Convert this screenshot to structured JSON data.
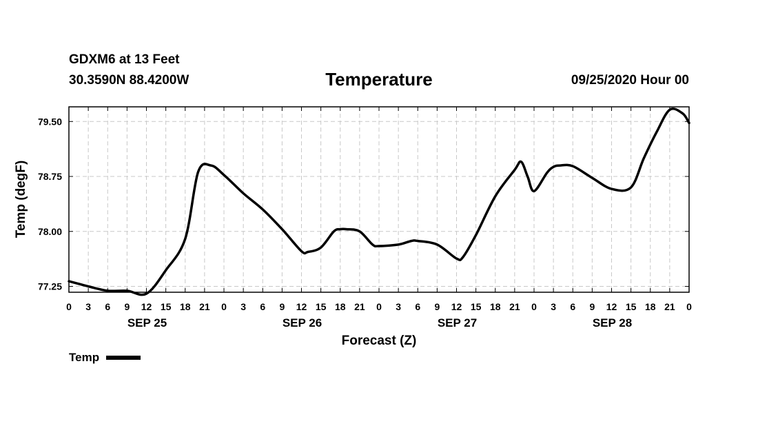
{
  "header": {
    "station": "GDXM6 at 13 Feet",
    "latlon": "30.3590N 88.4200W",
    "title": "Temperature",
    "datetime": "09/25/2020 Hour 00"
  },
  "legend": {
    "label": "Temp"
  },
  "chart_data": {
    "type": "line",
    "title": "Temperature",
    "xlabel": "Forecast (Z)",
    "ylabel": "Temp (degF)",
    "ylim": [
      77.17,
      79.7
    ],
    "y_ticks": [
      77.25,
      78.0,
      78.75,
      79.5
    ],
    "y_tick_labels": [
      "77.25",
      "78.00",
      "78.75",
      "79.50"
    ],
    "xlim": [
      0,
      96
    ],
    "x_unit": "forecast hours",
    "x_tick_labels": [
      "0",
      "3",
      "6",
      "9",
      "12",
      "15",
      "18",
      "21",
      "0",
      "3",
      "6",
      "9",
      "12",
      "15",
      "18",
      "21",
      "0",
      "3",
      "6",
      "9",
      "12",
      "15",
      "18",
      "21",
      "0",
      "3",
      "6",
      "9",
      "12",
      "15",
      "18",
      "21",
      "0"
    ],
    "day_labels": [
      {
        "label": "SEP 25",
        "hour": 12
      },
      {
        "label": "SEP 26",
        "hour": 36
      },
      {
        "label": "SEP 27",
        "hour": 60
      },
      {
        "label": "SEP 28",
        "hour": 84
      }
    ],
    "grid": true,
    "legend_position": "bottom-left",
    "color": "#000000",
    "series": [
      {
        "name": "Temp",
        "x": [
          0,
          3,
          6,
          9,
          12,
          15,
          18,
          20,
          22,
          24,
          27,
          30,
          33,
          36,
          37,
          39,
          41,
          42,
          43,
          45,
          47,
          48,
          51,
          53,
          54,
          57,
          60,
          61,
          63,
          66,
          69,
          70,
          71,
          72,
          74,
          75,
          76,
          78,
          81,
          84,
          87,
          89,
          91,
          93,
          95,
          96
        ],
        "y": [
          77.32,
          77.25,
          77.19,
          77.19,
          77.15,
          77.47,
          77.9,
          78.81,
          78.9,
          78.77,
          78.52,
          78.3,
          78.03,
          77.73,
          77.72,
          77.78,
          78.0,
          78.03,
          78.03,
          78.0,
          77.82,
          77.8,
          77.82,
          77.87,
          77.87,
          77.82,
          77.63,
          77.65,
          77.95,
          78.48,
          78.84,
          78.95,
          78.75,
          78.55,
          78.8,
          78.88,
          78.9,
          78.89,
          78.73,
          78.58,
          78.6,
          79.0,
          79.36,
          79.66,
          79.61,
          79.48
        ]
      }
    ]
  }
}
